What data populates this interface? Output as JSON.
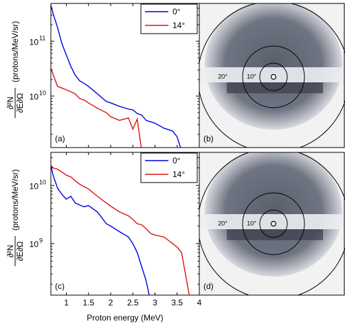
{
  "chart_data": [
    {
      "type": "line",
      "panel_label": "(a)",
      "log_y": true,
      "ylabel_numerator": "∂²N",
      "ylabel_denominator": "∂E∂Ω",
      "ylabel_units": "(protons/MeV/sr)",
      "xlim": [
        0.65,
        4
      ],
      "ylim": [
        1150000000.0,
        490000000000.0
      ],
      "xticks": [
        1,
        1.5,
        2,
        2.5,
        3,
        3.5,
        4
      ],
      "show_xtick_labels": false,
      "yticks": [
        {
          "value": 10000000000.0,
          "label": "10",
          "power": "10"
        },
        {
          "value": 100000000000.0,
          "label": "10",
          "power": "11"
        }
      ],
      "legend": "top-right",
      "x": [
        0.65,
        0.7,
        0.8,
        0.9,
        1.0,
        1.1,
        1.2,
        1.3,
        1.4,
        1.5,
        1.7,
        1.9,
        2.0,
        2.2,
        2.4,
        2.5,
        2.6,
        2.7,
        2.8,
        2.9,
        3.0,
        3.2,
        3.4,
        3.5,
        3.6,
        3.8
      ],
      "series": [
        {
          "name": "0°",
          "color": "#0000dd",
          "values": [
            450000000000.0,
            320000000000.0,
            180000000000.0,
            90000000000.0,
            56000000000.0,
            35000000000.0,
            24000000000.0,
            19000000000.0,
            17000000000.0,
            15000000000.0,
            11000000000.0,
            8000000000.0,
            7500000000.0,
            6500000000.0,
            5800000000.0,
            5600000000.0,
            4800000000.0,
            4500000000.0,
            3600000000.0,
            3400000000.0,
            3200000000.0,
            2600000000.0,
            2300000000.0,
            1800000000.0,
            1000000000.0,
            null
          ]
        },
        {
          "name": "14°",
          "color": "#dd1111",
          "values": [
            32000000000.0,
            25000000000.0,
            15000000000.0,
            14000000000.0,
            13000000000.0,
            12000000000.0,
            11000000000.0,
            9000000000.0,
            8500000000.0,
            7500000000.0,
            6000000000.0,
            5000000000.0,
            4200000000.0,
            3600000000.0,
            4000000000.0,
            2500000000.0,
            3800000000.0,
            1000000000.0,
            null,
            null,
            null,
            null,
            null,
            null,
            null,
            null
          ]
        }
      ]
    },
    {
      "type": "line",
      "panel_label": "(c)",
      "log_y": true,
      "ylabel_numerator": "∂²N",
      "ylabel_denominator": "∂E∂Ω",
      "ylabel_units": "(protons/MeV/sr)",
      "xlabel": "Proton energy (MeV)",
      "xlim": [
        0.65,
        4
      ],
      "ylim": [
        130000000.0,
        37000000000.0
      ],
      "xticks": [
        1,
        1.5,
        2,
        2.5,
        3,
        3.5,
        4
      ],
      "show_xtick_labels": true,
      "yticks": [
        {
          "value": 1000000000.0,
          "label": "10",
          "power": "9"
        },
        {
          "value": 10000000000.0,
          "label": "10",
          "power": "10"
        }
      ],
      "legend": "top-right",
      "x": [
        0.65,
        0.7,
        0.8,
        0.9,
        1.0,
        1.1,
        1.2,
        1.3,
        1.4,
        1.5,
        1.7,
        1.9,
        2.0,
        2.2,
        2.4,
        2.5,
        2.6,
        2.7,
        2.8,
        2.9,
        3.0,
        3.2,
        3.4,
        3.5,
        3.6,
        3.8
      ],
      "series": [
        {
          "name": "0°",
          "color": "#0000dd",
          "values": [
            22000000000.0,
            15000000000.0,
            9000000000.0,
            7000000000.0,
            5800000000.0,
            6500000000.0,
            5000000000.0,
            4600000000.0,
            4300000000.0,
            4500000000.0,
            3500000000.0,
            2200000000.0,
            2000000000.0,
            1600000000.0,
            1300000000.0,
            1000000000.0,
            700000000.0,
            400000000.0,
            230000000.0,
            100000000.0,
            null,
            null,
            null,
            null,
            null,
            null
          ]
        },
        {
          "name": "14°",
          "color": "#dd1111",
          "values": [
            22000000000.0,
            20000000000.0,
            19000000000.0,
            17000000000.0,
            15000000000.0,
            14000000000.0,
            12000000000.0,
            10500000000.0,
            9500000000.0,
            8700000000.0,
            6500000000.0,
            5000000000.0,
            4400000000.0,
            3500000000.0,
            3000000000.0,
            2600000000.0,
            2200000000.0,
            2100000000.0,
            1800000000.0,
            1500000000.0,
            1400000000.0,
            1300000000.0,
            1000000000.0,
            870000000.0,
            700000000.0,
            100000000.0
          ]
        }
      ]
    }
  ],
  "images": [
    {
      "label": "(b)",
      "ring_labels": [
        "20°",
        "10°"
      ]
    },
    {
      "label": "(d)",
      "ring_labels": [
        "20°",
        "10°"
      ]
    }
  ]
}
